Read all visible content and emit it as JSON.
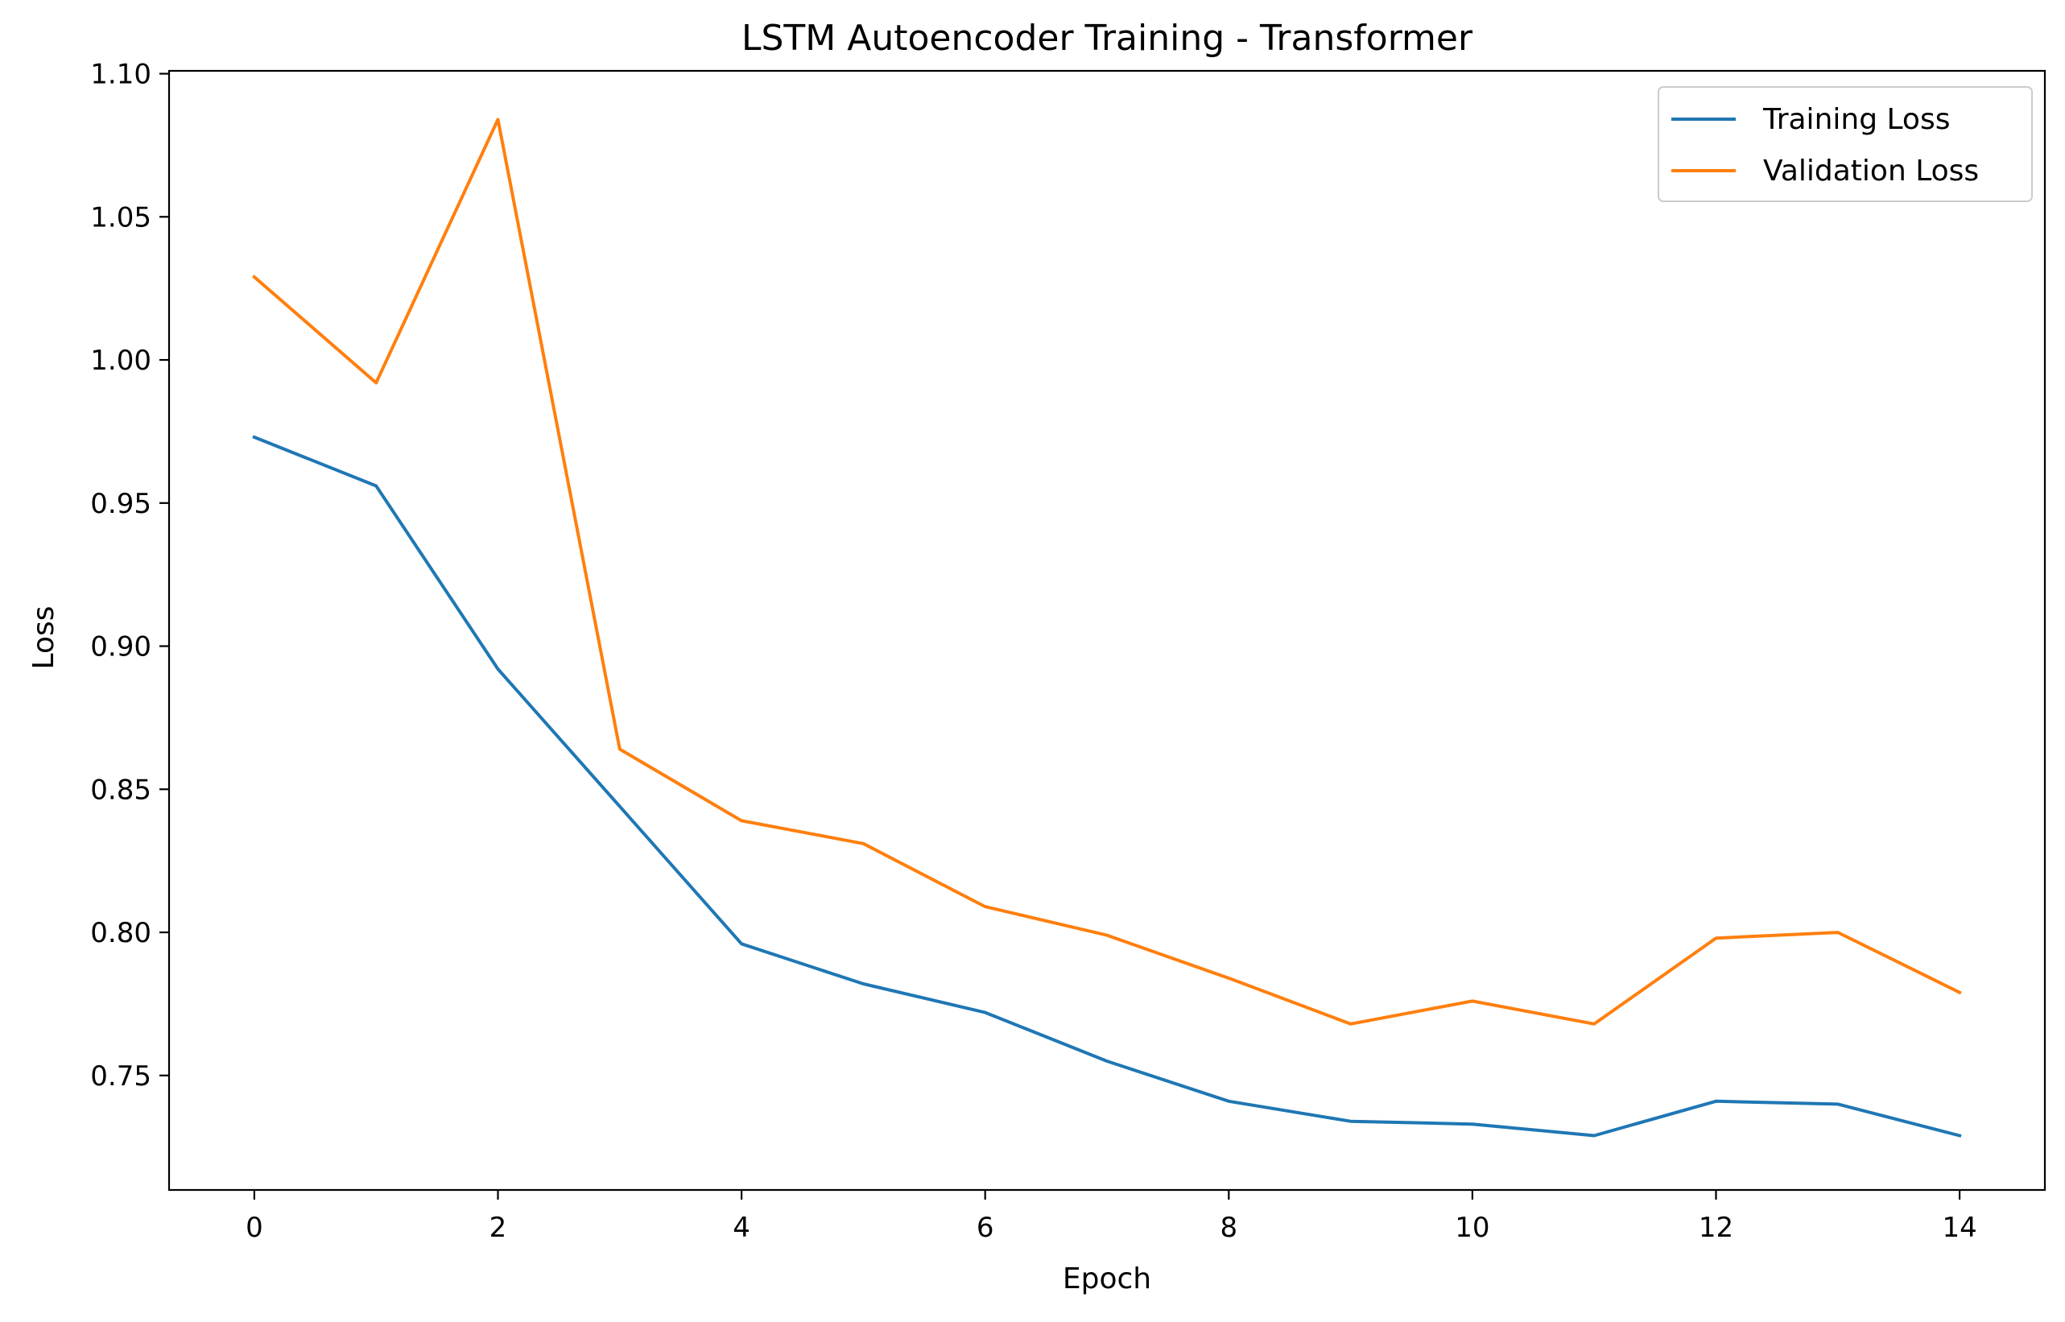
{
  "chart_data": {
    "type": "line",
    "title": "LSTM Autoencoder Training - Transformer",
    "xlabel": "Epoch",
    "ylabel": "Loss",
    "xlim": [
      -0.7,
      14.7
    ],
    "ylim": [
      0.71,
      1.101
    ],
    "xticks": [
      0,
      2,
      4,
      6,
      8,
      10,
      12,
      14
    ],
    "xtick_labels": [
      "0",
      "2",
      "4",
      "6",
      "8",
      "10",
      "12",
      "14"
    ],
    "yticks": [
      0.75,
      0.8,
      0.85,
      0.9,
      0.95,
      1.0,
      1.05,
      1.1
    ],
    "ytick_labels": [
      "0.75",
      "0.80",
      "0.85",
      "0.90",
      "0.95",
      "1.00",
      "1.05",
      "1.10"
    ],
    "grid": false,
    "legend_position": "top-right",
    "x": [
      0,
      1,
      2,
      3,
      4,
      5,
      6,
      7,
      8,
      9,
      10,
      11,
      12,
      13,
      14
    ],
    "series": [
      {
        "name": "Training Loss",
        "color": "#1f77b4",
        "values": [
          0.973,
          0.956,
          0.892,
          0.844,
          0.796,
          0.782,
          0.772,
          0.755,
          0.741,
          0.734,
          0.733,
          0.729,
          0.741,
          0.74,
          0.729
        ]
      },
      {
        "name": "Validation Loss",
        "color": "#ff7f0e",
        "values": [
          1.029,
          0.992,
          1.084,
          0.864,
          0.839,
          0.831,
          0.809,
          0.799,
          0.784,
          0.768,
          0.776,
          0.768,
          0.798,
          0.8,
          0.779
        ]
      }
    ]
  }
}
